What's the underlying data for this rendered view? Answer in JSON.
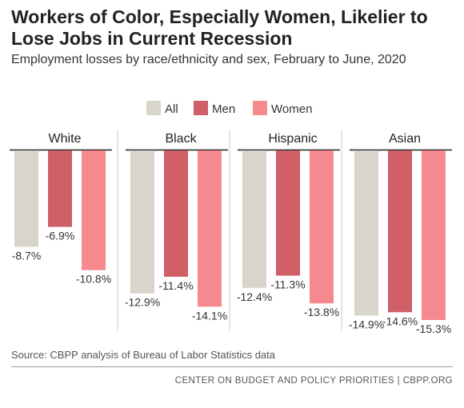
{
  "title": "Workers of Color, Especially Women, Likelier to Lose Jobs in Current Recession",
  "subtitle": "Employment losses by race/ethnicity and sex, February to June, 2020",
  "source": "Source: CBPP analysis of Bureau of Labor Statistics data",
  "footer": "CENTER ON BUDGET AND POLICY PRIORITIES | CBPP.ORG",
  "chart_data": {
    "type": "bar",
    "series": [
      {
        "name": "All",
        "color": "#d9d4cc"
      },
      {
        "name": "Men",
        "color": "#cf6068"
      },
      {
        "name": "Women",
        "color": "#f5898e"
      }
    ],
    "panels": [
      {
        "label": "White",
        "values": [
          -8.7,
          -6.9,
          -10.8
        ],
        "labels": [
          "-8.7%",
          "-6.9%",
          "-10.8%"
        ]
      },
      {
        "label": "Black",
        "values": [
          -12.9,
          -11.4,
          -14.1
        ],
        "labels": [
          "-12.9%",
          "-11.4%",
          "-14.1%"
        ]
      },
      {
        "label": "Hispanic",
        "values": [
          -12.4,
          -11.3,
          -13.8
        ],
        "labels": [
          "-12.4%",
          "-11.3%",
          "-13.8%"
        ]
      },
      {
        "label": "Asian",
        "values": [
          -14.9,
          -14.6,
          -15.3
        ],
        "labels": [
          "-14.9%",
          "-14.6%",
          "-15.3%"
        ]
      }
    ],
    "ylim": [
      -15.3,
      0
    ],
    "grid": false,
    "legend_position": "top"
  }
}
